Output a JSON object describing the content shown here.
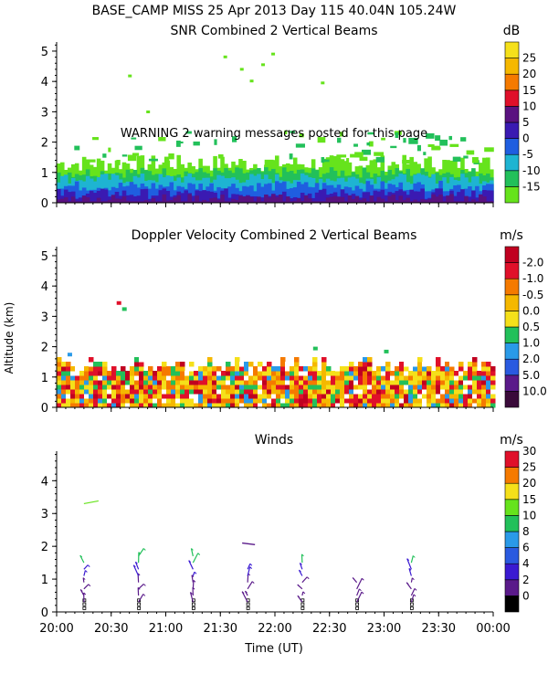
{
  "header": {
    "line1": "BASE_CAMP MISS  25 Apr 2013 Day 115 40.04N 105.24W"
  },
  "warning_text": "WARNING  2 warning messages posted for this page",
  "shared_axes": {
    "ylabel": "Altitude (km)",
    "xlabel": "Time (UT)",
    "x_ticks": [
      "20:00",
      "20:30",
      "21:00",
      "21:30",
      "22:00",
      "22:30",
      "23:00",
      "23:30",
      "00:00"
    ],
    "x_range_hours": [
      20,
      24
    ]
  },
  "chart_data": [
    {
      "type": "heatmap",
      "title": "SNR Combined 2 Vertical Beams",
      "unit": "dB",
      "ylim": [
        0,
        5.3
      ],
      "y_ticks": [
        "0",
        "1",
        "2",
        "3",
        "4",
        "5"
      ],
      "colorbar_labels": [
        "-15",
        "-10",
        "-5",
        "0",
        "5",
        "10",
        "15",
        "20",
        "25"
      ],
      "colorbar_colors": [
        "#66e31c",
        "#22c05a",
        "#1eb4d2",
        "#1f5ee0",
        "#3a1ab2",
        "#5a1280",
        "#e0102a",
        "#f57a00",
        "#f5b800",
        "#f5e01a"
      ],
      "layers_km": [
        {
          "label": "-15",
          "top_km": 1.3
        },
        {
          "label": "-10",
          "top_km": 1.0
        },
        {
          "label": "-5",
          "top_km": 0.8
        },
        {
          "label": "0",
          "top_km": 0.55
        },
        {
          "label": "5",
          "top_km": 0.3
        },
        {
          "label": "10",
          "top_km": 0.12
        }
      ]
    },
    {
      "type": "heatmap",
      "title": "Doppler Velocity Combined 2 Vertical Beams",
      "unit": "m/s",
      "ylim": [
        0,
        5.3
      ],
      "y_ticks": [
        "0",
        "1",
        "2",
        "3",
        "4",
        "5"
      ],
      "colorbar_labels": [
        "10.0",
        "5.0",
        "2.0",
        "1.0",
        "0.5",
        "0.0",
        "-0.5",
        "-1.0",
        "-2.0"
      ],
      "colorbar_colors": [
        "#3a0a3a",
        "#5a1a8a",
        "#2a5ae0",
        "#2a9ae8",
        "#22c05a",
        "#f5e01a",
        "#f5b800",
        "#f57a00",
        "#e0102a",
        "#c00020"
      ],
      "echo_top_km": 1.6
    },
    {
      "type": "scatter",
      "title": "Winds",
      "unit": "m/s",
      "ylim": [
        0,
        4.9
      ],
      "y_ticks": [
        "0",
        "1",
        "2",
        "3",
        "4"
      ],
      "colorbar_labels": [
        "0",
        "2",
        "4",
        "6",
        "8",
        "10",
        "15",
        "20",
        "25",
        "30"
      ],
      "colorbar_colors": [
        "#000000",
        "#5a1a8a",
        "#3a1ad2",
        "#2a5ae0",
        "#2a9ae8",
        "#22c05a",
        "#66e31c",
        "#f5e01a",
        "#f57a00",
        "#e0102a"
      ],
      "profiles": [
        {
          "time": "20:15",
          "x_hours": 20.25,
          "heights_km": [
            0.3,
            0.5,
            0.7,
            0.9,
            1.1,
            1.3,
            1.5
          ]
        },
        {
          "time": "20:45",
          "x_hours": 20.75,
          "heights_km": [
            0.3,
            0.5,
            0.7,
            0.9,
            1.1,
            1.3,
            1.5,
            1.7
          ]
        },
        {
          "time": "21:15",
          "x_hours": 21.25,
          "heights_km": [
            0.3,
            0.5,
            0.7,
            0.9,
            1.1,
            1.3,
            1.5,
            1.7
          ]
        },
        {
          "time": "21:45",
          "x_hours": 21.75,
          "heights_km": [
            0.3,
            0.5,
            0.7,
            0.9,
            1.1,
            1.3
          ]
        },
        {
          "time": "22:15",
          "x_hours": 22.25,
          "heights_km": [
            0.3,
            0.5,
            0.7,
            0.9,
            1.1,
            1.3,
            1.5
          ]
        },
        {
          "time": "22:45",
          "x_hours": 22.75,
          "heights_km": [
            0.3,
            0.5,
            0.7,
            0.9
          ]
        },
        {
          "time": "23:15",
          "x_hours": 23.25,
          "heights_km": [
            0.3,
            0.5,
            0.7,
            0.9,
            1.1,
            1.3,
            1.5
          ]
        }
      ]
    }
  ]
}
